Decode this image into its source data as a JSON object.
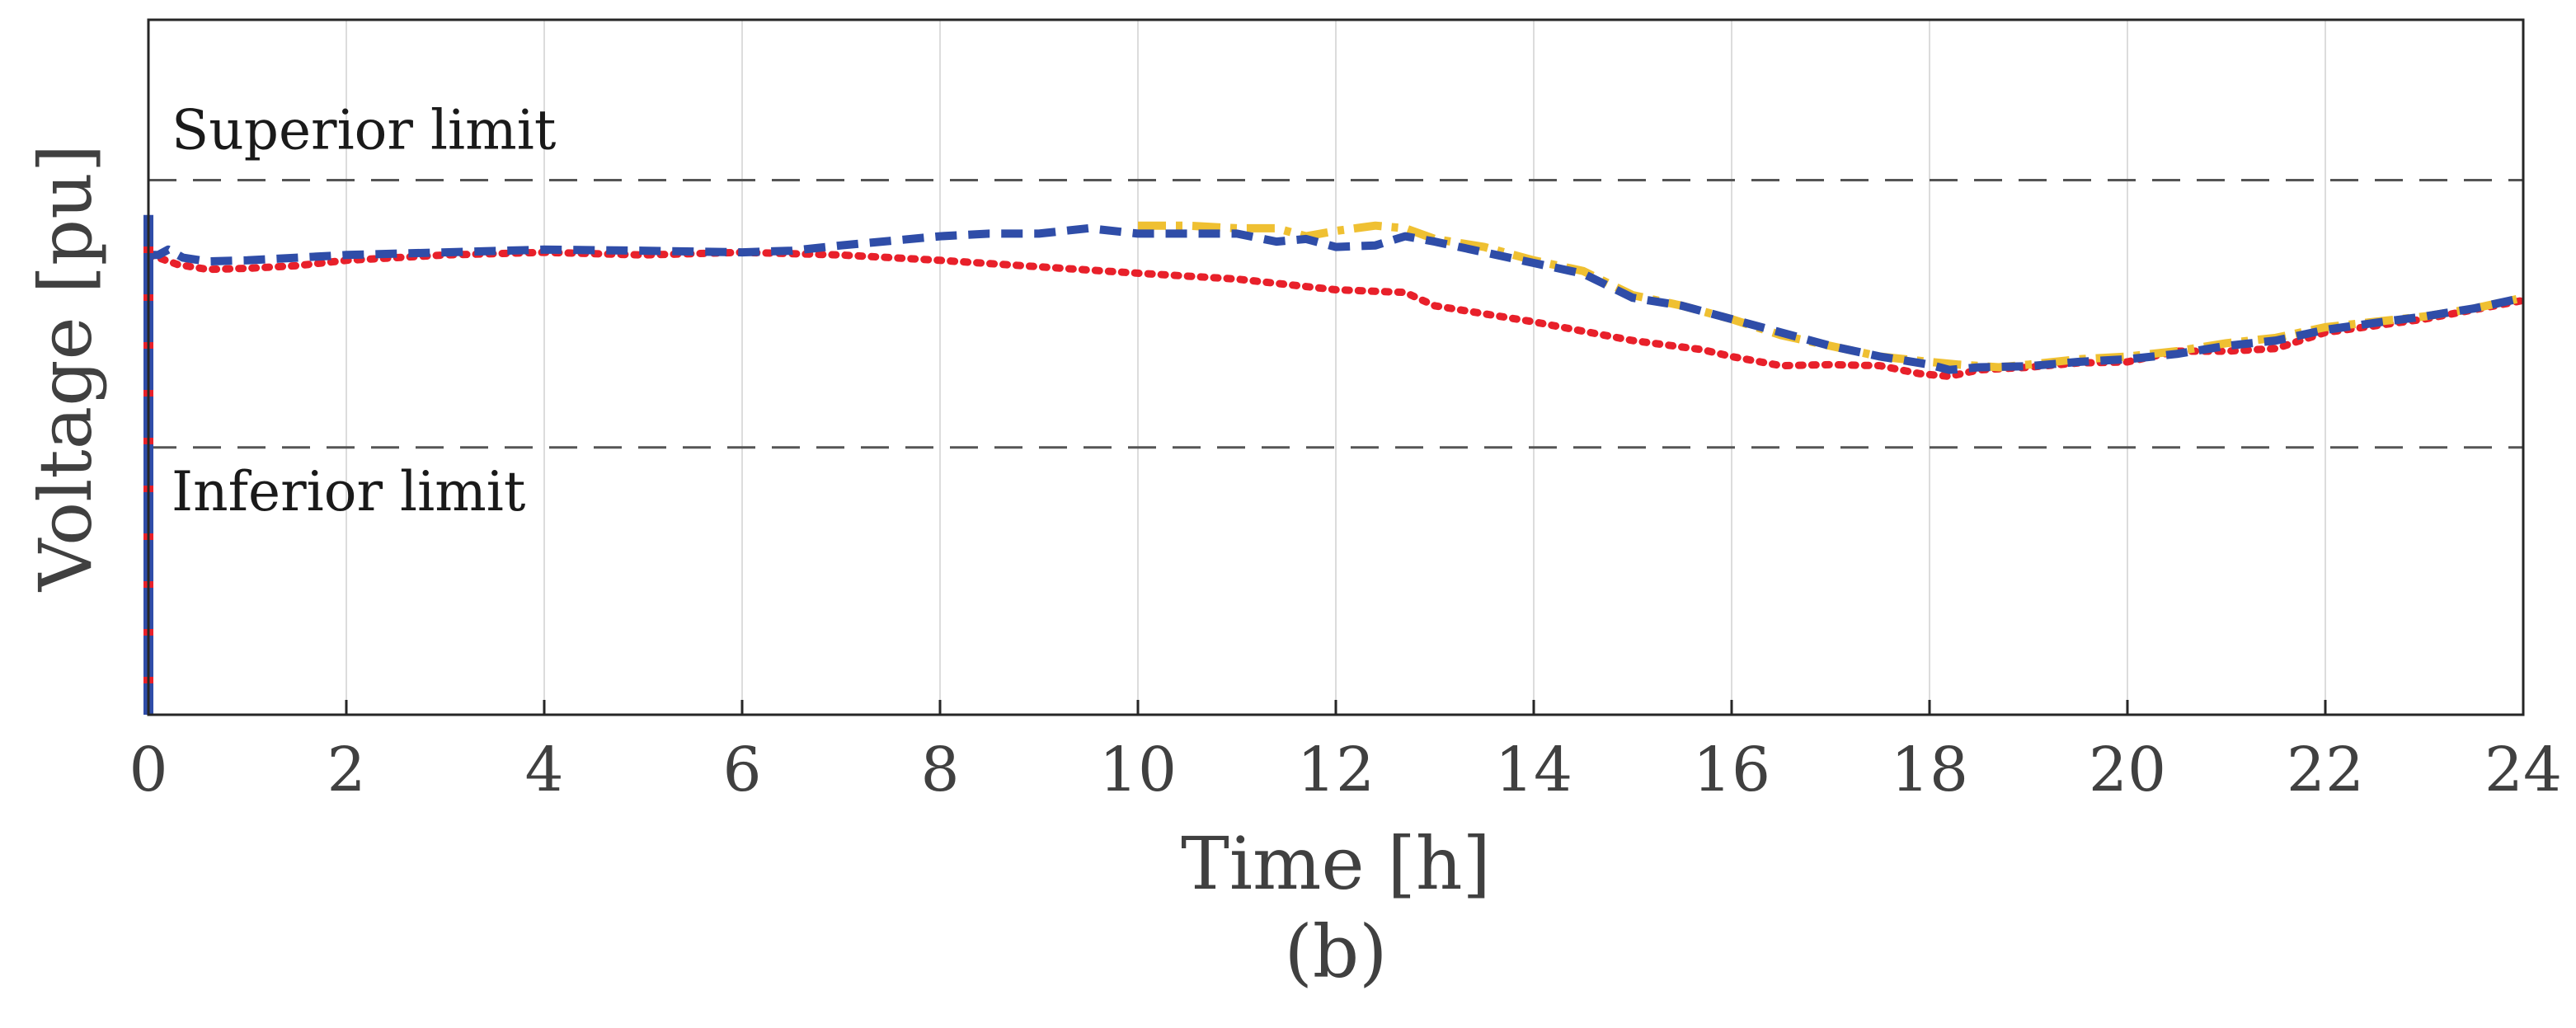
{
  "chart_data": {
    "type": "line",
    "title": "",
    "caption": "(b)",
    "xlabel": "Time [h]",
    "ylabel": "Voltage [pu]",
    "xlim": [
      0,
      24
    ],
    "ylim": [
      0.9,
      1.03
    ],
    "xticks": [
      0,
      2,
      4,
      6,
      8,
      10,
      12,
      14,
      16,
      18,
      20,
      22,
      24
    ],
    "grid": "vertical",
    "legend": "none",
    "reference_lines": [
      {
        "name": "superior-limit",
        "label": "Superior limit",
        "y": 1.0,
        "style": "dashed",
        "color": "#555555"
      },
      {
        "name": "inferior-limit",
        "label": "Inferior limit",
        "y": 0.95,
        "style": "dashed",
        "color": "#555555"
      }
    ],
    "series": [
      {
        "name": "red-dotted",
        "color": "#e8202a",
        "style": "dotted",
        "x": [
          0,
          0.1,
          0.3,
          0.6,
          1,
          1.5,
          2,
          3,
          4,
          5,
          6,
          7,
          8,
          9,
          10,
          11,
          12,
          12.7,
          13,
          14,
          15,
          15.7,
          16,
          16.5,
          17,
          17.5,
          17.9,
          18.2,
          18.5,
          19,
          19.5,
          20,
          20.5,
          21,
          21.5,
          22,
          23,
          24
        ],
        "y": [
          0.986,
          0.9855,
          0.9842,
          0.9833,
          0.9835,
          0.984,
          0.985,
          0.986,
          0.9865,
          0.986,
          0.9865,
          0.986,
          0.985,
          0.9838,
          0.9826,
          0.9815,
          0.9795,
          0.979,
          0.9765,
          0.9735,
          0.97,
          0.9683,
          0.967,
          0.9653,
          0.9655,
          0.9653,
          0.9638,
          0.9633,
          0.9645,
          0.965,
          0.9658,
          0.966,
          0.968,
          0.968,
          0.9685,
          0.9715,
          0.974,
          0.9775
        ]
      },
      {
        "name": "yellow-dashdot",
        "color": "#efc032",
        "style": "dashdot",
        "x": [
          10,
          10.5,
          11,
          11.4,
          11.7,
          12,
          12.4,
          12.7,
          13,
          13.5,
          14,
          14.5,
          15,
          15.5,
          16,
          16.5,
          17,
          17.5,
          18,
          18.3,
          18.7,
          19,
          19.5,
          20,
          20.5,
          21,
          21.5,
          22,
          22.5,
          23,
          23.5,
          24
        ],
        "y": [
          0.9915,
          0.9915,
          0.991,
          0.991,
          0.9895,
          0.9905,
          0.9915,
          0.991,
          0.989,
          0.9875,
          0.985,
          0.983,
          0.9785,
          0.9765,
          0.974,
          0.971,
          0.969,
          0.967,
          0.966,
          0.9655,
          0.965,
          0.9655,
          0.9665,
          0.967,
          0.968,
          0.9695,
          0.9705,
          0.9725,
          0.9735,
          0.9745,
          0.976,
          0.978
        ]
      },
      {
        "name": "blue-dashed",
        "color": "#2f4da8",
        "style": "dashed",
        "x": [
          0,
          0.1,
          0.2,
          0.35,
          0.6,
          1,
          1.5,
          2,
          3,
          4,
          5,
          6,
          6.5,
          7,
          8,
          8.5,
          9,
          9.5,
          10,
          10.5,
          11,
          11.4,
          11.7,
          12,
          12.4,
          12.7,
          13,
          13.5,
          14,
          14.5,
          15,
          15.5,
          16,
          16.5,
          17,
          17.5,
          18,
          18.2,
          18.5,
          19,
          19.5,
          20,
          20.5,
          21,
          21.5,
          22,
          22.5,
          23,
          23.5,
          24
        ],
        "y": [
          0.986,
          0.986,
          0.987,
          0.9855,
          0.9848,
          0.985,
          0.9855,
          0.986,
          0.9865,
          0.987,
          0.9868,
          0.9865,
          0.9868,
          0.9878,
          0.9895,
          0.99,
          0.99,
          0.991,
          0.99,
          0.99,
          0.99,
          0.9885,
          0.989,
          0.9875,
          0.9878,
          0.9895,
          0.9885,
          0.9865,
          0.9845,
          0.9825,
          0.978,
          0.9765,
          0.974,
          0.9715,
          0.969,
          0.967,
          0.9655,
          0.9645,
          0.965,
          0.9652,
          0.966,
          0.9665,
          0.9675,
          0.969,
          0.97,
          0.972,
          0.9733,
          0.9745,
          0.976,
          0.978
        ]
      }
    ],
    "vertical_marker": {
      "x": 0,
      "y_from": 0.9,
      "y_to": 0.9935,
      "colors": [
        "#2f4da8",
        "#e8202a"
      ]
    }
  }
}
